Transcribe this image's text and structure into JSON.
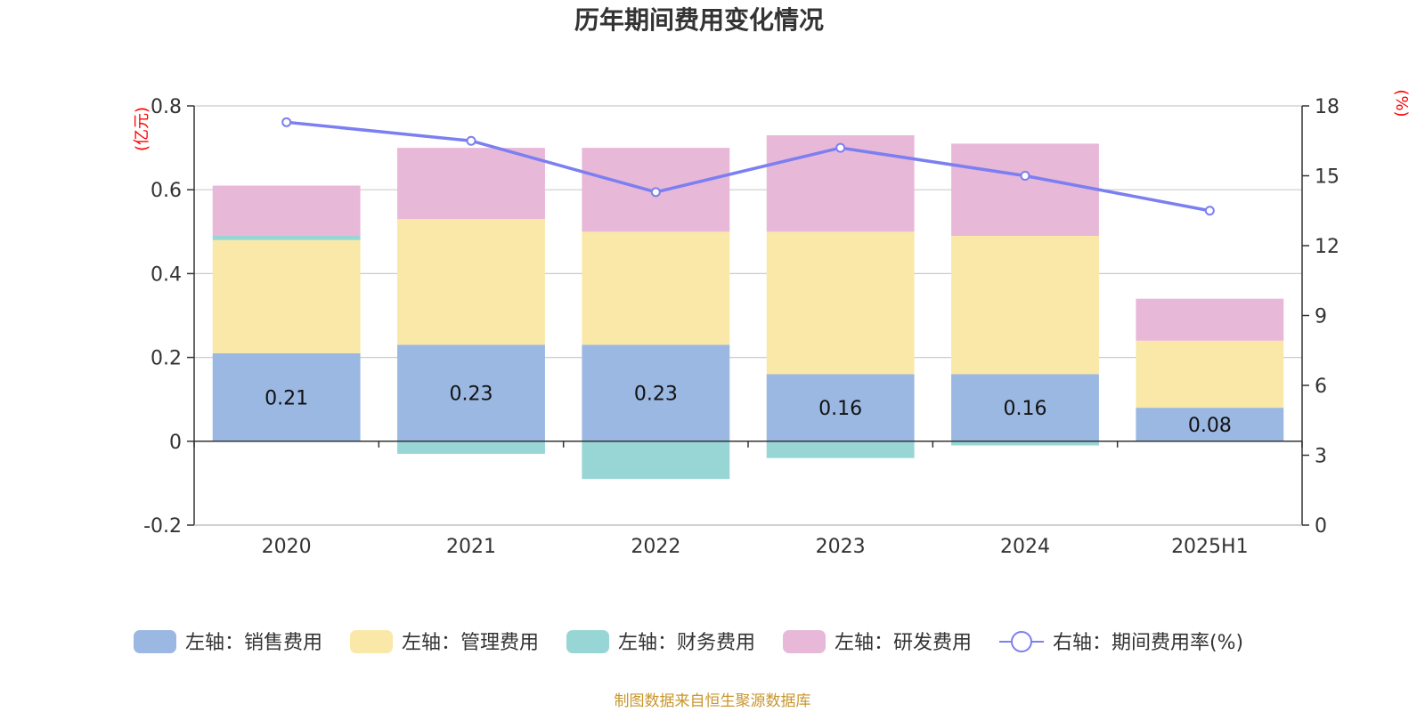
{
  "chart_data": {
    "type": "bar",
    "title": "历年期间费用变化情况",
    "categories": [
      "2020",
      "2021",
      "2022",
      "2023",
      "2024",
      "2025H1"
    ],
    "left_axis": {
      "unit": "(亿元)",
      "ylim": [
        -0.2,
        0.8
      ],
      "ticks": [
        "-0.2",
        "0",
        "0.2",
        "0.4",
        "0.6",
        "0.8"
      ],
      "tick_values": [
        -0.2,
        0,
        0.2,
        0.4,
        0.6,
        0.8
      ]
    },
    "right_axis": {
      "unit": "(%)",
      "ylim": [
        0,
        18
      ],
      "ticks": [
        "0",
        "3",
        "6",
        "9",
        "12",
        "15",
        "18"
      ],
      "tick_values": [
        0,
        3,
        6,
        9,
        12,
        15,
        18
      ]
    },
    "series": [
      {
        "name": "左轴：销售费用",
        "axis": "left",
        "stack": true,
        "color": "#9bb8e2",
        "values": [
          0.21,
          0.23,
          0.23,
          0.16,
          0.16,
          0.08
        ],
        "labels": [
          "0.21",
          "0.23",
          "0.23",
          "0.16",
          "0.16",
          "0.08"
        ]
      },
      {
        "name": "左轴：管理费用",
        "axis": "left",
        "stack": true,
        "color": "#f9e8a8",
        "values": [
          0.27,
          0.3,
          0.27,
          0.34,
          0.33,
          0.16
        ]
      },
      {
        "name": "左轴：财务费用",
        "axis": "left",
        "stack": true,
        "color": "#98d5d5",
        "values": [
          0.01,
          -0.03,
          -0.09,
          -0.04,
          -0.01,
          0.0
        ]
      },
      {
        "name": "左轴：研发费用",
        "axis": "left",
        "stack": true,
        "color": "#e8b8d8",
        "values": [
          0.12,
          0.17,
          0.2,
          0.23,
          0.22,
          0.1
        ]
      },
      {
        "name": "右轴：期间费用率(%)",
        "axis": "right",
        "type": "line",
        "color": "#7b7ff0",
        "values": [
          17.3,
          16.5,
          14.3,
          16.2,
          15.0,
          13.5
        ]
      }
    ],
    "grid": true,
    "legend_position": "bottom"
  },
  "source": "制图数据来自恒生聚源数据库"
}
